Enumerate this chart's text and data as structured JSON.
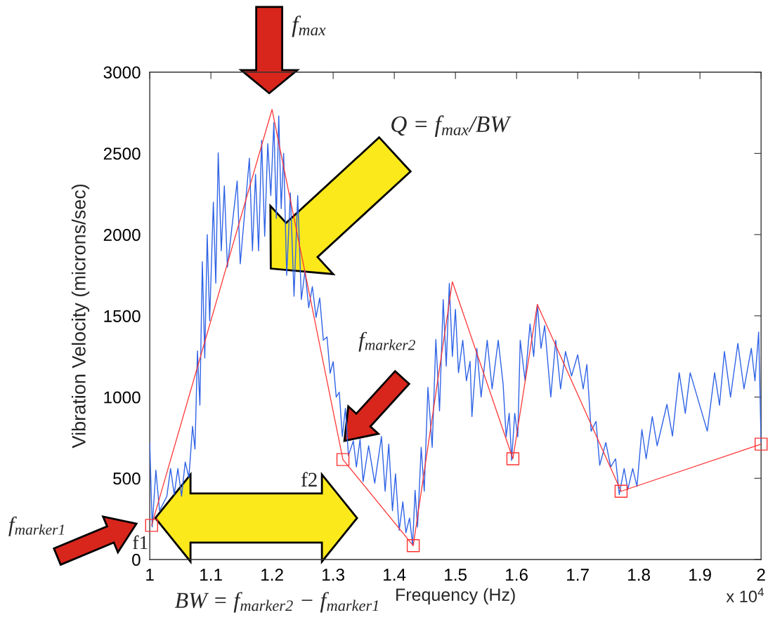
{
  "chart_data": {
    "type": "line",
    "xlabel": "Frequency (Hz)",
    "ylabel": "Vibration Velocity (microns/sec)",
    "xlim": [
      1,
      2
    ],
    "xticks": [
      1,
      1.1,
      1.2,
      1.3,
      1.4,
      1.5,
      1.6,
      1.7,
      1.8,
      1.9,
      2
    ],
    "ylim": [
      0,
      3000
    ],
    "yticks": [
      0,
      500,
      1000,
      1500,
      2000,
      2500,
      3000
    ],
    "series": [
      {
        "color": "#2f63e6",
        "x": [
          1.0,
          1.004,
          1.01,
          1.016,
          1.028,
          1.034,
          1.04,
          1.046,
          1.052,
          1.058,
          1.064,
          1.07,
          1.074,
          1.078,
          1.082,
          1.086,
          1.09,
          1.094,
          1.098,
          1.104,
          1.108,
          1.112,
          1.117,
          1.122,
          1.127,
          1.143,
          1.148,
          1.163,
          1.168,
          1.173,
          1.178,
          1.183,
          1.188,
          1.193,
          1.198,
          1.203,
          1.207,
          1.211,
          1.215,
          1.219,
          1.224,
          1.23,
          1.236,
          1.242,
          1.248,
          1.254,
          1.26,
          1.266,
          1.272,
          1.278,
          1.284,
          1.29,
          1.295,
          1.3,
          1.305,
          1.31,
          1.315,
          1.32,
          1.325,
          1.333,
          1.338,
          1.344,
          1.349,
          1.358,
          1.368,
          1.379,
          1.385,
          1.391,
          1.397,
          1.402,
          1.408,
          1.414,
          1.419,
          1.425,
          1.43,
          1.434,
          1.438,
          1.444,
          1.449,
          1.455,
          1.462,
          1.468,
          1.474,
          1.48,
          1.485,
          1.49,
          1.495,
          1.5,
          1.505,
          1.512,
          1.518,
          1.524,
          1.527,
          1.535,
          1.542,
          1.552,
          1.56,
          1.57,
          1.578,
          1.583,
          1.588,
          1.592,
          1.597,
          1.602,
          1.606,
          1.614,
          1.622,
          1.628,
          1.634,
          1.64,
          1.646,
          1.656,
          1.664,
          1.672,
          1.68,
          1.69,
          1.7,
          1.709,
          1.715,
          1.722,
          1.73,
          1.736,
          1.746,
          1.754,
          1.762,
          1.768,
          1.776,
          1.782,
          1.79,
          1.797,
          1.805,
          1.812,
          1.822,
          1.83,
          1.846,
          1.855,
          1.866,
          1.876,
          1.884,
          1.912,
          1.924,
          1.932,
          1.94,
          1.95,
          1.962,
          1.972,
          1.984,
          1.99,
          1.996,
          2.0
        ],
        "values": [
          720,
          200,
          550,
          300,
          390,
          560,
          400,
          560,
          390,
          600,
          505,
          820,
          680,
          1284,
          950,
          1833,
          1240,
          2000,
          1470,
          2200,
          1700,
          2503,
          1900,
          2300,
          1800,
          2330,
          1820,
          2470,
          1900,
          2370,
          1900,
          2580,
          1990,
          2560,
          2240,
          2690,
          2100,
          2730,
          2160,
          2500,
          1750,
          2257,
          1620,
          2240,
          1600,
          1780,
          1550,
          1680,
          1490,
          1610,
          1350,
          1370,
          1146,
          1218,
          1000,
          1030,
          757,
          930,
          640,
          730,
          570,
          740,
          480,
          700,
          470,
          757,
          420,
          710,
          300,
          527,
          180,
          355,
          165,
          255,
          90,
          426,
          200,
          690,
          420,
          1060,
          690,
          1355,
          915,
          1600,
          1190,
          1700,
          1250,
          1540,
          1150,
          1350,
          1100,
          1220,
          880,
          1300,
          1000,
          1350,
          1050,
          1350,
          1080,
          755,
          900,
          610,
          900,
          755,
          1350,
          1100,
          1450,
          1250,
          1570,
          1300,
          1440,
          1000,
          1350,
          1050,
          1280,
          1130,
          1260,
          1050,
          1200,
          790,
          850,
          580,
          720,
          570,
          620,
          400,
          560,
          430,
          560,
          450,
          800,
          620,
          880,
          700,
          955,
          760,
          1150,
          900,
          1150,
          790,
          1150,
          950,
          1280,
          1000,
          1330,
          1050,
          1300,
          1100,
          1400,
          720
        ]
      },
      {
        "color": "#ff3030",
        "x": [
          1.003,
          1.2,
          1.316,
          1.431,
          1.495,
          1.594,
          1.634,
          1.771,
          2.0
        ],
        "values": [
          210,
          2770,
          615,
          85,
          1710,
          620,
          1570,
          420,
          710
        ]
      },
      {
        "type": "scatter",
        "color": "#ff3030",
        "marker": "square",
        "x": [
          1.003,
          1.316,
          1.431,
          1.594,
          1.771,
          2.0
        ],
        "values": [
          210,
          615,
          85,
          620,
          420,
          710
        ]
      }
    ],
    "annotations": [
      "f$_{max}$",
      "Q = f$_{max}$/BW",
      "f$_{marker2}$",
      "f2",
      "f$_{marker1}$",
      "f1",
      "BW = f$_{marker2}$ − f$_{marker1}$",
      "x 10$^{4}$"
    ]
  }
}
